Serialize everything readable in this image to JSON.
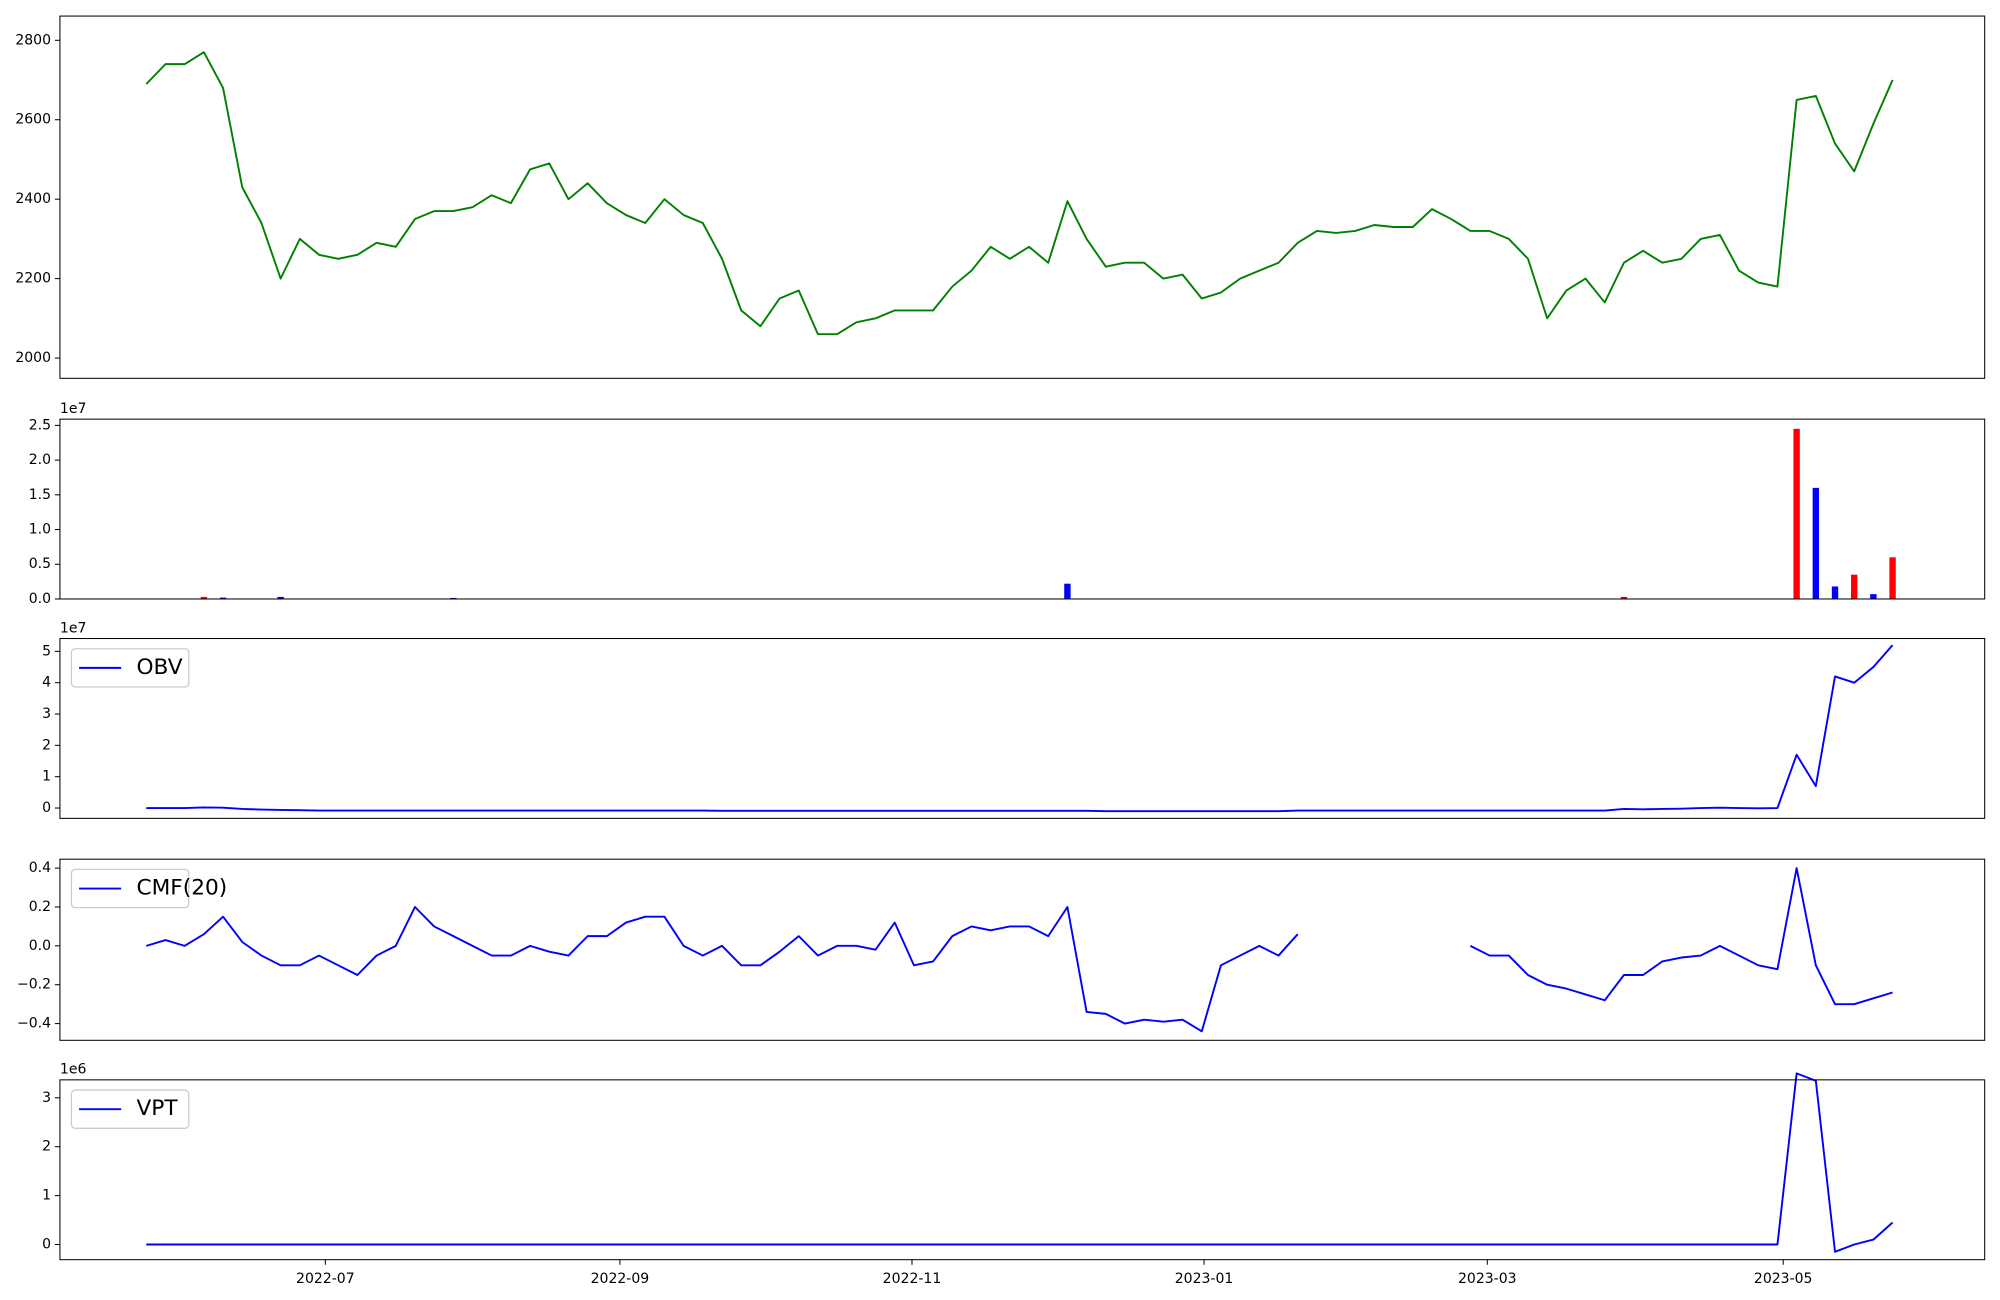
{
  "chart_data": [
    {
      "type": "line",
      "categories": [
        null,
        null,
        null,
        null,
        null,
        null,
        null,
        null,
        null,
        null,
        null,
        null,
        null,
        null,
        null,
        null,
        null,
        null,
        null,
        null,
        null,
        null,
        null,
        null,
        null,
        null,
        null,
        null,
        null,
        null,
        null,
        null,
        null,
        null,
        null,
        null,
        null,
        null,
        null,
        null,
        null,
        null,
        null,
        null,
        null,
        null,
        null,
        null,
        null,
        null,
        null,
        null,
        null,
        null,
        null,
        null,
        null,
        null,
        null,
        null,
        null,
        null,
        null,
        null,
        null,
        null,
        null,
        null,
        null,
        null,
        null,
        null,
        null,
        null,
        null,
        null,
        null,
        null,
        null,
        null,
        null,
        null,
        null,
        null,
        null,
        null,
        null,
        null,
        null,
        null,
        null,
        null
      ],
      "xlim": [
        -4.5,
        95.8
      ],
      "values": [
        2690,
        2740,
        2740,
        2770,
        2680,
        2430,
        2340,
        2200,
        2300,
        2260,
        2250,
        2260,
        2290,
        2280,
        2350,
        2370,
        2370,
        2380,
        2410,
        2390,
        2475,
        2490,
        2400,
        2440,
        2390,
        2360,
        2340,
        2400,
        2360,
        2340,
        2250,
        2120,
        2080,
        2150,
        2170,
        2060,
        2060,
        2090,
        2100,
        2120,
        2120,
        2120,
        2180,
        2220,
        2280,
        2250,
        2280,
        2240,
        2395,
        2300,
        2230,
        2240,
        2240,
        2200,
        2210,
        2150,
        2165,
        2200,
        2220,
        2240,
        2290,
        2320,
        2315,
        2320,
        2335,
        2330,
        2330,
        2375,
        2350,
        2320,
        2320,
        2300,
        2250,
        2100,
        2170,
        2200,
        2140,
        2240,
        2270,
        2240,
        2250,
        2300,
        2310,
        2220,
        2190,
        2180,
        2650,
        2660,
        2540,
        2470,
        2590,
        2700
      ],
      "color": "#008000",
      "ylim": [
        1949,
        2861
      ],
      "yticks": [
        2000,
        2200,
        2400,
        2600,
        2800
      ]
    },
    {
      "type": "bar",
      "categories": [
        null,
        null,
        null,
        null,
        null,
        null,
        null,
        null,
        null,
        null,
        null,
        null,
        null,
        null,
        null,
        null,
        null,
        null,
        null,
        null,
        null,
        null,
        null,
        null,
        null,
        null,
        null,
        null,
        null,
        null,
        null,
        null,
        null,
        null,
        null,
        null,
        null,
        null,
        null,
        null,
        null,
        null,
        null,
        null,
        null,
        null,
        null,
        null,
        null,
        null,
        null,
        null,
        null,
        null,
        null,
        null,
        null,
        null,
        null,
        null,
        null,
        null,
        null,
        null,
        null,
        null,
        null,
        null,
        null,
        null,
        null,
        null,
        null,
        null,
        null,
        null,
        null,
        null,
        null,
        null,
        null,
        null,
        null,
        null,
        null,
        null,
        null,
        null,
        null,
        null,
        null,
        null
      ],
      "xlim": [
        -4.5,
        95.8
      ],
      "values": [
        0,
        0,
        0,
        300000,
        200000,
        0,
        0,
        300000,
        0,
        0,
        0,
        0,
        0,
        0,
        0,
        0,
        150000,
        0,
        0,
        0,
        0,
        0,
        0,
        0,
        0,
        0,
        0,
        0,
        0,
        0,
        0,
        0,
        0,
        0,
        0,
        0,
        0,
        0,
        0,
        0,
        0,
        0,
        0,
        0,
        0,
        0,
        0,
        0,
        2200000,
        0,
        0,
        0,
        0,
        0,
        0,
        0,
        0,
        0,
        0,
        0,
        0,
        0,
        0,
        0,
        0,
        0,
        0,
        0,
        0,
        0,
        0,
        0,
        0,
        0,
        0,
        0,
        0,
        300000,
        0,
        0,
        0,
        0,
        0,
        0,
        0,
        0,
        24500000,
        16000000,
        1800000,
        3500000,
        700000,
        6000000
      ],
      "colors": [
        "#0000ff",
        "#0000ff",
        "#0000ff",
        "#ff0000",
        "#0000ff",
        "#0000ff",
        "#0000ff",
        "#0000ff",
        "#0000ff",
        "#0000ff",
        "#0000ff",
        "#0000ff",
        "#0000ff",
        "#0000ff",
        "#0000ff",
        "#0000ff",
        "#0000ff",
        "#0000ff",
        "#0000ff",
        "#0000ff",
        "#0000ff",
        "#0000ff",
        "#0000ff",
        "#0000ff",
        "#0000ff",
        "#0000ff",
        "#0000ff",
        "#0000ff",
        "#0000ff",
        "#0000ff",
        "#0000ff",
        "#0000ff",
        "#0000ff",
        "#0000ff",
        "#0000ff",
        "#0000ff",
        "#0000ff",
        "#0000ff",
        "#0000ff",
        "#0000ff",
        "#0000ff",
        "#0000ff",
        "#0000ff",
        "#0000ff",
        "#0000ff",
        "#0000ff",
        "#0000ff",
        "#0000ff",
        "#0000ff",
        "#0000ff",
        "#0000ff",
        "#0000ff",
        "#0000ff",
        "#0000ff",
        "#0000ff",
        "#0000ff",
        "#0000ff",
        "#0000ff",
        "#0000ff",
        "#0000ff",
        "#0000ff",
        "#0000ff",
        "#0000ff",
        "#0000ff",
        "#0000ff",
        "#0000ff",
        "#0000ff",
        "#0000ff",
        "#0000ff",
        "#0000ff",
        "#0000ff",
        "#0000ff",
        "#0000ff",
        "#0000ff",
        "#0000ff",
        "#0000ff",
        "#0000ff",
        "#ff0000",
        "#0000ff",
        "#0000ff",
        "#0000ff",
        "#0000ff",
        "#0000ff",
        "#0000ff",
        "#0000ff",
        "#0000ff",
        "#ff0000",
        "#0000ff",
        "#0000ff",
        "#ff0000",
        "#0000ff",
        "#ff0000"
      ],
      "offset_label": "1e7",
      "ylim": [
        0,
        25900000
      ],
      "yticks": [
        {
          "value": 0,
          "label": "0.0"
        },
        {
          "value": 5000000,
          "label": "0.5"
        },
        {
          "value": 10000000,
          "label": "1.0"
        },
        {
          "value": 15000000,
          "label": "1.5"
        },
        {
          "value": 20000000,
          "label": "2.0"
        },
        {
          "value": 25000000,
          "label": "2.5"
        }
      ]
    },
    {
      "type": "line",
      "categories": [
        null,
        null,
        null,
        null,
        null,
        null,
        null,
        null,
        null,
        null,
        null,
        null,
        null,
        null,
        null,
        null,
        null,
        null,
        null,
        null,
        null,
        null,
        null,
        null,
        null,
        null,
        null,
        null,
        null,
        null,
        null,
        null,
        null,
        null,
        null,
        null,
        null,
        null,
        null,
        null,
        null,
        null,
        null,
        null,
        null,
        null,
        null,
        null,
        null,
        null,
        null,
        null,
        null,
        null,
        null,
        null,
        null,
        null,
        null,
        null,
        null,
        null,
        null,
        null,
        null,
        null,
        null,
        null,
        null,
        null,
        null,
        null,
        null,
        null,
        null,
        null,
        null,
        null,
        null,
        null,
        null,
        null,
        null,
        null,
        null,
        null,
        null,
        null,
        null,
        null,
        null,
        null
      ],
      "xlim": [
        -4.5,
        95.8
      ],
      "series": [
        {
          "name": "OBV",
          "color": "#0000ff",
          "values": [
            0,
            0,
            0,
            200000,
            100000,
            -300000,
            -500000,
            -600000,
            -700000,
            -800000,
            -800000,
            -800000,
            -800000,
            -800000,
            -800000,
            -800000,
            -800000,
            -800000,
            -800000,
            -800000,
            -800000,
            -800000,
            -800000,
            -800000,
            -800000,
            -800000,
            -800000,
            -800000,
            -800000,
            -800000,
            -900000,
            -900000,
            -900000,
            -900000,
            -900000,
            -900000,
            -900000,
            -900000,
            -900000,
            -900000,
            -900000,
            -900000,
            -900000,
            -900000,
            -900000,
            -900000,
            -900000,
            -900000,
            -900000,
            -900000,
            -1000000,
            -1000000,
            -1000000,
            -1000000,
            -1000000,
            -1000000,
            -1000000,
            -1000000,
            -1000000,
            -1000000,
            -800000,
            -800000,
            -800000,
            -800000,
            -800000,
            -800000,
            -800000,
            -800000,
            -800000,
            -800000,
            -800000,
            -800000,
            -800000,
            -800000,
            -800000,
            -800000,
            -800000,
            -300000,
            -400000,
            -300000,
            -200000,
            0,
            100000,
            0,
            -100000,
            0,
            17000000,
            7000000,
            42000000,
            40000000,
            45000000,
            52000000
          ]
        }
      ],
      "legend": "upper left",
      "offset_label": "1e7",
      "ylim": [
        -3300000,
        54100000
      ],
      "yticks": [
        0,
        {
          "value": 10000000,
          "label": "1"
        },
        {
          "value": 20000000,
          "label": "2"
        },
        {
          "value": 30000000,
          "label": "3"
        },
        {
          "value": 40000000,
          "label": "4"
        },
        {
          "value": 50000000,
          "label": "5"
        }
      ]
    },
    {
      "type": "line",
      "categories": [
        null,
        null,
        null,
        null,
        null,
        null,
        null,
        null,
        null,
        null,
        null,
        null,
        null,
        null,
        null,
        null,
        null,
        null,
        null,
        null,
        null,
        null,
        null,
        null,
        null,
        null,
        null,
        null,
        null,
        null,
        null,
        null,
        null,
        null,
        null,
        null,
        null,
        null,
        null,
        null,
        null,
        null,
        null,
        null,
        null,
        null,
        null,
        null,
        null,
        null,
        null,
        null,
        null,
        null,
        null,
        null,
        null,
        null,
        null,
        null,
        null,
        null,
        null,
        null,
        null,
        null,
        null,
        null,
        null,
        null,
        null,
        null,
        null,
        null,
        null,
        null,
        null,
        null,
        null,
        null,
        null,
        null,
        null,
        null,
        null,
        null,
        null,
        null,
        null,
        null,
        null,
        null
      ],
      "xlim": [
        -4.5,
        95.8
      ],
      "series": [
        {
          "name": "CMF(20)",
          "color": "#0000ff",
          "values": [
            0.0,
            0.03,
            0.0,
            0.06,
            0.15,
            0.02,
            -0.05,
            -0.1,
            -0.1,
            -0.05,
            -0.1,
            -0.15,
            -0.05,
            0.0,
            0.2,
            0.1,
            0.05,
            0.0,
            -0.05,
            -0.05,
            0.0,
            -0.03,
            -0.05,
            0.05,
            0.05,
            0.12,
            0.15,
            0.15,
            0.0,
            -0.05,
            0.0,
            -0.1,
            -0.1,
            -0.03,
            0.05,
            -0.05,
            0.0,
            0.0,
            -0.02,
            0.12,
            -0.1,
            -0.08,
            0.05,
            0.1,
            0.08,
            0.1,
            0.1,
            0.05,
            0.2,
            -0.34,
            -0.35,
            -0.4,
            -0.38,
            -0.39,
            -0.38,
            -0.44,
            -0.1,
            -0.05,
            0.0,
            -0.05,
            0.06,
            null,
            null,
            null,
            null,
            null,
            null,
            null,
            null,
            0.0,
            -0.05,
            -0.05,
            -0.15,
            -0.2,
            -0.22,
            -0.25,
            -0.28,
            -0.15,
            -0.15,
            -0.08,
            -0.06,
            -0.05,
            0.0,
            -0.05,
            -0.1,
            -0.12,
            0.4,
            -0.1,
            -0.3,
            -0.3,
            -0.27,
            -0.24
          ]
        }
      ],
      "legend": "upper left",
      "ylim": [
        -0.486,
        0.446
      ],
      "yticks": [
        {
          "value": -0.4,
          "label": "−0.4"
        },
        {
          "value": -0.2,
          "label": "−0.2"
        },
        {
          "value": 0,
          "label": "0.0"
        },
        0.2,
        0.4
      ]
    },
    {
      "type": "line",
      "categories": [
        null,
        null,
        null,
        null,
        null,
        null,
        null,
        null,
        null,
        null,
        null,
        null,
        null,
        null,
        null,
        null,
        null,
        null,
        null,
        null,
        null,
        null,
        null,
        null,
        null,
        null,
        null,
        null,
        null,
        null,
        null,
        null,
        null,
        null,
        null,
        null,
        null,
        null,
        null,
        null,
        null,
        null,
        null,
        null,
        null,
        null,
        null,
        null,
        null,
        null,
        null,
        null,
        null,
        null,
        null,
        null,
        null,
        null,
        null,
        null,
        null,
        null,
        null,
        null,
        null,
        null,
        null,
        null,
        null,
        null,
        null,
        null,
        null,
        null,
        null,
        null,
        null,
        null,
        null,
        null,
        null,
        null,
        null,
        null,
        null,
        null,
        null,
        null,
        null,
        null,
        null,
        null
      ],
      "xlim": [
        -4.5,
        95.8
      ],
      "series": [
        {
          "name": "VPT",
          "color": "#0000ff",
          "values": [
            0,
            0,
            0,
            0,
            0,
            0,
            0,
            0,
            0,
            0,
            0,
            0,
            0,
            0,
            0,
            0,
            0,
            0,
            0,
            0,
            0,
            0,
            0,
            0,
            0,
            0,
            0,
            0,
            0,
            0,
            0,
            0,
            0,
            0,
            0,
            0,
            0,
            0,
            0,
            0,
            0,
            0,
            0,
            0,
            0,
            0,
            0,
            0,
            0,
            0,
            0,
            0,
            0,
            0,
            0,
            0,
            0,
            0,
            0,
            0,
            0,
            0,
            0,
            0,
            0,
            0,
            0,
            0,
            0,
            0,
            0,
            0,
            0,
            0,
            0,
            0,
            0,
            0,
            0,
            0,
            0,
            0,
            0,
            0,
            0,
            0,
            3500000,
            3350000,
            -150000,
            0,
            100000,
            450000
          ]
        }
      ],
      "legend": "upper left",
      "offset_label": "1e6",
      "ylim": [
        -311000,
        3368000
      ],
      "yticks": [
        0,
        {
          "value": 1000000,
          "label": "1"
        },
        {
          "value": 2000000,
          "label": "2"
        },
        {
          "value": 3000000,
          "label": "3"
        }
      ],
      "xticks": [
        {
          "value": 9.33,
          "label": "2022-07"
        },
        {
          "value": 24.68,
          "label": "2022-09"
        },
        {
          "value": 39.9,
          "label": "2022-11"
        },
        {
          "value": 55.12,
          "label": "2023-01"
        },
        {
          "value": 69.88,
          "label": "2023-03"
        },
        {
          "value": 85.3,
          "label": "2023-05"
        }
      ]
    }
  ]
}
